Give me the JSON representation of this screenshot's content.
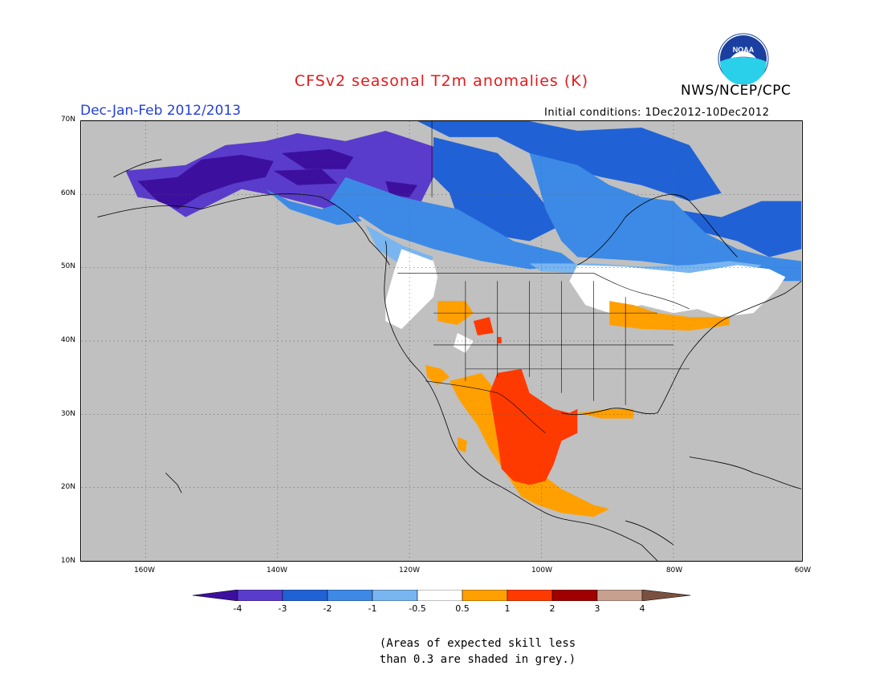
{
  "title": "CFSv2 seasonal T2m anomalies (K)",
  "agency": "NWS/NCEP/CPC",
  "logo_text": "NOAA",
  "season": "Dec-Jan-Feb 2012/2013",
  "initial_conditions": "Initial conditions: 1Dec2012-10Dec2012",
  "lat_labels": [
    "70N",
    "60N",
    "50N",
    "40N",
    "30N",
    "20N",
    "10N"
  ],
  "lon_labels": [
    "160W",
    "140W",
    "120W",
    "100W",
    "80W",
    "60W"
  ],
  "colorbar": {
    "labels": [
      "-4",
      "-3",
      "-2",
      "-1",
      "-0.5",
      "0.5",
      "1",
      "2",
      "3",
      "4"
    ],
    "colors": {
      "below_-4": "#3d0f9e",
      "-4_-3": "#5a3ccc",
      "-3_-2": "#2062d6",
      "-2_-1": "#3d8ae6",
      "-1_-0.5": "#79b5f0",
      "-0.5_0.5": "#ffffff",
      "0.5_1": "#ffa000",
      "1_2": "#ff3a00",
      "2_3": "#a00000",
      "3_4": "#c8a090",
      "above_4": "#7a5040"
    }
  },
  "note": {
    "line1": "(Areas of expected skill less",
    "line2": "than 0.3 are shaded in grey.)"
  },
  "map_colors": {
    "grey": "#c0c0c0",
    "strong_neg": "#3d0f9e",
    "neg3": "#5a3ccc",
    "neg2": "#2062d6",
    "neg1": "#3d8ae6",
    "neg05": "#79b5f0",
    "neutral": "#ffffff",
    "pos05": "#ffa000",
    "pos1": "#ff3a00"
  }
}
